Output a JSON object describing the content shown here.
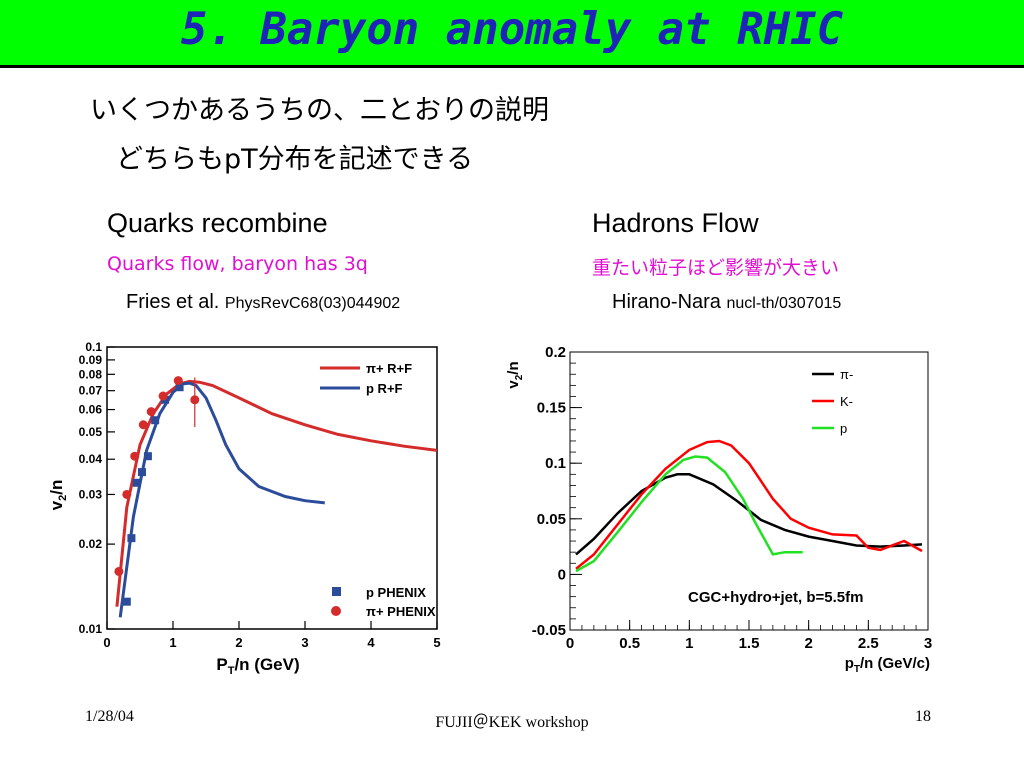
{
  "slide": {
    "title": "5. Baryon anomaly at RHIC",
    "line1": "いくつかあるうちの、二とおりの説明",
    "line2": "どちらもpT分布を記述できる"
  },
  "left": {
    "heading": "Quarks recombine",
    "subheading": "Quarks flow, baryon has 3q",
    "ref_author": "Fries et al.",
    "ref_journal": "PhysRevC68(03)044902"
  },
  "right": {
    "heading": "Hadrons Flow",
    "subheading": "重たい粒子ほど影響が大きい",
    "ref_author": "Hirano-Nara",
    "ref_journal": "nucl-th/0307015"
  },
  "footer": {
    "date": "1/28/04",
    "center": "FUJII＠KEK workshop",
    "page": "18"
  },
  "chart_data": [
    {
      "type": "line",
      "xlabel": "PT/n (GeV)",
      "ylabel": "v2/n",
      "xlim": [
        0,
        5
      ],
      "ylim": [
        0.01,
        0.1
      ],
      "yscale": "log",
      "xticks": [
        "0",
        "1",
        "2",
        "3",
        "4",
        "5"
      ],
      "yticks": [
        "0.01",
        "0.02",
        "0.03",
        "0.04",
        "0.05",
        "0.06",
        "0.07",
        "0.08",
        "0.09",
        "0.1"
      ],
      "legend_placement": "top-right",
      "series": [
        {
          "name": "π+ R+F",
          "color": "#d42b2b",
          "x": [
            0.15,
            0.3,
            0.5,
            0.7,
            0.9,
            1.1,
            1.25,
            1.4,
            1.6,
            2.0,
            2.5,
            3.0,
            3.5,
            4.0,
            4.5,
            5.0
          ],
          "y": [
            0.012,
            0.027,
            0.045,
            0.058,
            0.068,
            0.074,
            0.0755,
            0.075,
            0.073,
            0.066,
            0.058,
            0.053,
            0.049,
            0.0465,
            0.0445,
            0.043
          ]
        },
        {
          "name": "p R+F",
          "color": "#2a4c9a",
          "x": [
            0.2,
            0.4,
            0.6,
            0.8,
            1.0,
            1.15,
            1.25,
            1.35,
            1.5,
            1.65,
            1.8,
            2.0,
            2.3,
            2.7,
            3.0,
            3.3
          ],
          "y": [
            0.011,
            0.025,
            0.043,
            0.058,
            0.069,
            0.074,
            0.0745,
            0.073,
            0.066,
            0.055,
            0.045,
            0.037,
            0.032,
            0.0295,
            0.0285,
            0.028
          ]
        }
      ],
      "points": [
        {
          "name": "p PHENIX",
          "color": "#2a4c9a",
          "marker": "square",
          "x": [
            0.3,
            0.37,
            0.45,
            0.53,
            0.62,
            0.73,
            0.88,
            1.1
          ],
          "y": [
            0.0125,
            0.021,
            0.033,
            0.036,
            0.041,
            0.055,
            0.065,
            0.072
          ]
        },
        {
          "name": "π+ PHENIX",
          "color": "#d42b2b",
          "marker": "circle",
          "x": [
            0.18,
            0.3,
            0.42,
            0.55,
            0.67,
            0.85,
            1.08,
            1.33
          ],
          "y": [
            0.016,
            0.03,
            0.041,
            0.053,
            0.059,
            0.067,
            0.076,
            0.065
          ]
        }
      ]
    },
    {
      "type": "line",
      "xlabel": "pT/n (GeV/c)",
      "ylabel": "v2/n",
      "xlim": [
        0,
        3
      ],
      "ylim": [
        -0.05,
        0.2
      ],
      "xticks": [
        "0",
        "0.5",
        "1",
        "1.5",
        "2",
        "2.5",
        "3"
      ],
      "yticks": [
        "-0.05",
        "0",
        "0.05",
        "0.1",
        "0.15",
        "0.2"
      ],
      "annotation": "CGC+hydro+jet, b=5.5fm",
      "legend_placement": "top-right",
      "series": [
        {
          "name": "π-",
          "color": "#000000",
          "x": [
            0.05,
            0.2,
            0.4,
            0.6,
            0.8,
            0.9,
            1.0,
            1.2,
            1.4,
            1.6,
            1.8,
            2.0,
            2.2,
            2.4,
            2.6,
            2.8,
            2.95
          ],
          "y": [
            0.018,
            0.032,
            0.055,
            0.075,
            0.087,
            0.09,
            0.09,
            0.081,
            0.066,
            0.049,
            0.04,
            0.034,
            0.03,
            0.026,
            0.025,
            0.026,
            0.027
          ]
        },
        {
          "name": "K-",
          "color": "#ff0000",
          "x": [
            0.05,
            0.2,
            0.4,
            0.6,
            0.8,
            1.0,
            1.15,
            1.25,
            1.35,
            1.5,
            1.7,
            1.85,
            2.0,
            2.2,
            2.4,
            2.5,
            2.6,
            2.8,
            2.95
          ],
          "y": [
            0.005,
            0.018,
            0.045,
            0.072,
            0.095,
            0.112,
            0.119,
            0.12,
            0.116,
            0.1,
            0.068,
            0.05,
            0.042,
            0.036,
            0.035,
            0.024,
            0.022,
            0.03,
            0.021
          ]
        },
        {
          "name": "p",
          "color": "#22e022",
          "x": [
            0.05,
            0.2,
            0.4,
            0.6,
            0.8,
            0.95,
            1.05,
            1.15,
            1.3,
            1.45,
            1.55,
            1.7,
            1.8,
            1.95
          ],
          "y": [
            0.003,
            0.012,
            0.038,
            0.065,
            0.09,
            0.103,
            0.106,
            0.105,
            0.092,
            0.068,
            0.047,
            0.018,
            0.02,
            0.02
          ]
        }
      ]
    }
  ]
}
